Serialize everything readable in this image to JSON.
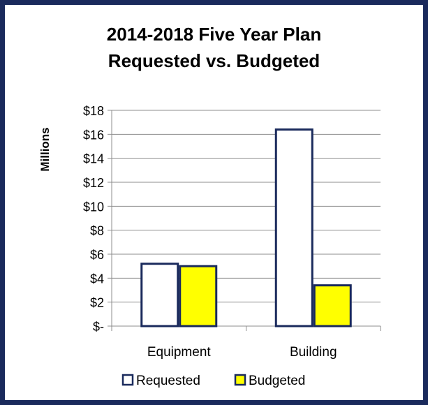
{
  "chart_data": {
    "type": "bar",
    "title_lines": [
      "2014-2018 Five Year Plan",
      "Requested vs. Budgeted"
    ],
    "ylabel": "Millions",
    "xlabel": "",
    "categories": [
      "Equipment",
      "Building"
    ],
    "series": [
      {
        "name": "Requested",
        "values": [
          5.2,
          16.4
        ],
        "color": "#ffffff"
      },
      {
        "name": "Budgeted",
        "values": [
          5.0,
          3.4
        ],
        "color": "#ffff00"
      }
    ],
    "ylim": [
      0,
      18
    ],
    "y_ticks": [
      0,
      2,
      4,
      6,
      8,
      10,
      12,
      14,
      16,
      18
    ],
    "y_tick_labels": [
      "$-",
      "$2",
      "$4",
      "$6",
      "$8",
      "$10",
      "$12",
      "$14",
      "$16",
      "$18"
    ],
    "grid": true,
    "legend_position": "bottom",
    "bar_outline_color": "#1a2a5c",
    "grid_color": "#8c8c8c"
  }
}
